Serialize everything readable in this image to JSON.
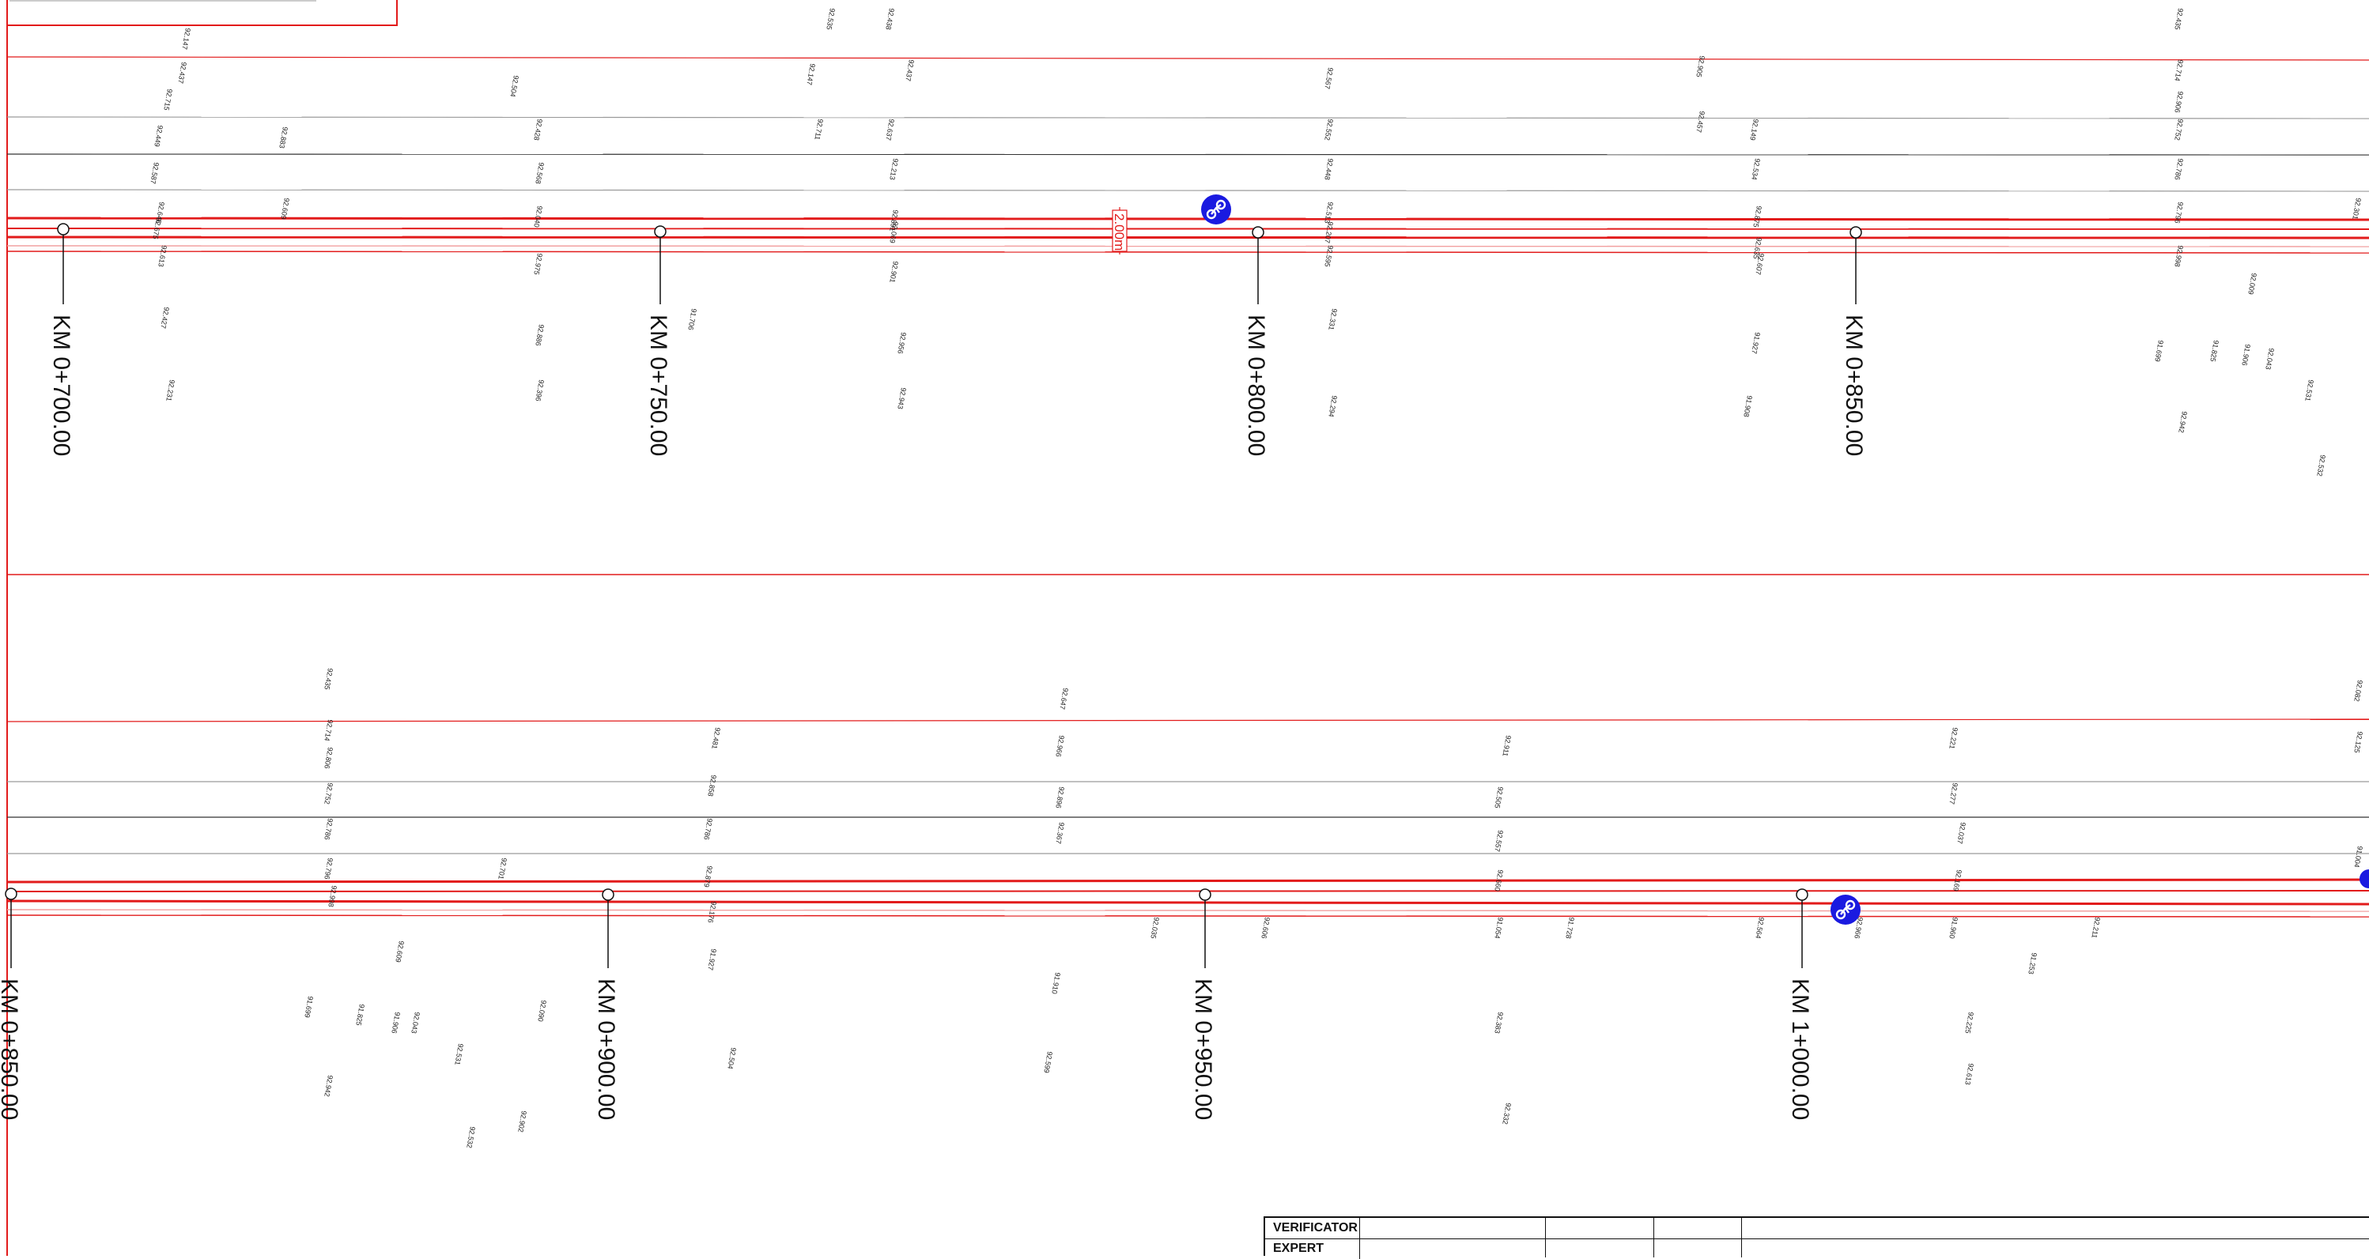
{
  "stations_top": [
    "KM 0+700.00",
    "KM 0+750.00",
    "KM 0+800.00",
    "KM 0+850.00"
  ],
  "stations_bottom": [
    "KM 0+850.00",
    "KM 0+900.00",
    "KM 0+950.00",
    "KM 1+000.00"
  ],
  "dimension_label": "2.00m",
  "elevations_top": [
    "92.147",
    "92.437",
    "92.715",
    "92.449",
    "92.587",
    "92.646",
    "92.675",
    "92.613",
    "92.427",
    "92.231",
    "92.883",
    "92.609",
    "92.504",
    "92.428",
    "92.568",
    "92.040",
    "92.975",
    "92.886",
    "92.396",
    "91.706",
    "92.535",
    "92.438",
    "92.147",
    "92.437",
    "92.711",
    "92.637",
    "92.213",
    "92.891",
    "92.069",
    "92.901",
    "92.956",
    "92.943",
    "92.567",
    "92.552",
    "92.448",
    "92.513",
    "92.207",
    "92.595",
    "92.331",
    "92.294",
    "92.905",
    "92.457",
    "92.149",
    "92.534",
    "92.875",
    "92.635",
    "92.607",
    "91.927",
    "91.908",
    "92.435",
    "92.714",
    "92.906",
    "92.752",
    "92.786",
    "92.796",
    "92.998",
    "92.009",
    "91.699",
    "91.825",
    "91.906",
    "92.043",
    "92.531",
    "92.942",
    "92.532",
    "92.301"
  ],
  "elevations_bottom": [
    "92.435",
    "92.714",
    "92.806",
    "92.752",
    "92.786",
    "92.796",
    "92.998",
    "92.609",
    "91.699",
    "91.825",
    "91.906",
    "92.043",
    "92.531",
    "92.942",
    "92.532",
    "92.701",
    "92.090",
    "92.902",
    "92.481",
    "92.858",
    "92.786",
    "92.879",
    "92.176",
    "91.927",
    "92.504",
    "92.647",
    "92.966",
    "92.896",
    "92.367",
    "91.910",
    "92.599",
    "92.035",
    "92.606",
    "92.911",
    "92.505",
    "92.557",
    "92.660",
    "91.054",
    "91.728",
    "92.383",
    "92.332",
    "92.564",
    "92.966",
    "92.221",
    "92.277",
    "92.037",
    "92.169",
    "91.960",
    "91.253",
    "92.211",
    "92.225",
    "92.613",
    "92.082",
    "92.125",
    "91.004"
  ],
  "title_block": {
    "row1": "VERIFICATOR",
    "row2": "EXPERT"
  },
  "colors": {
    "road_red": "#e21b1b",
    "light_red": "#f2a0a0",
    "marker_blue": "#1a1ae0",
    "grid_gray": "#9a9a9a",
    "ink": "#111111"
  },
  "icons": [
    "bicycle-icon"
  ]
}
